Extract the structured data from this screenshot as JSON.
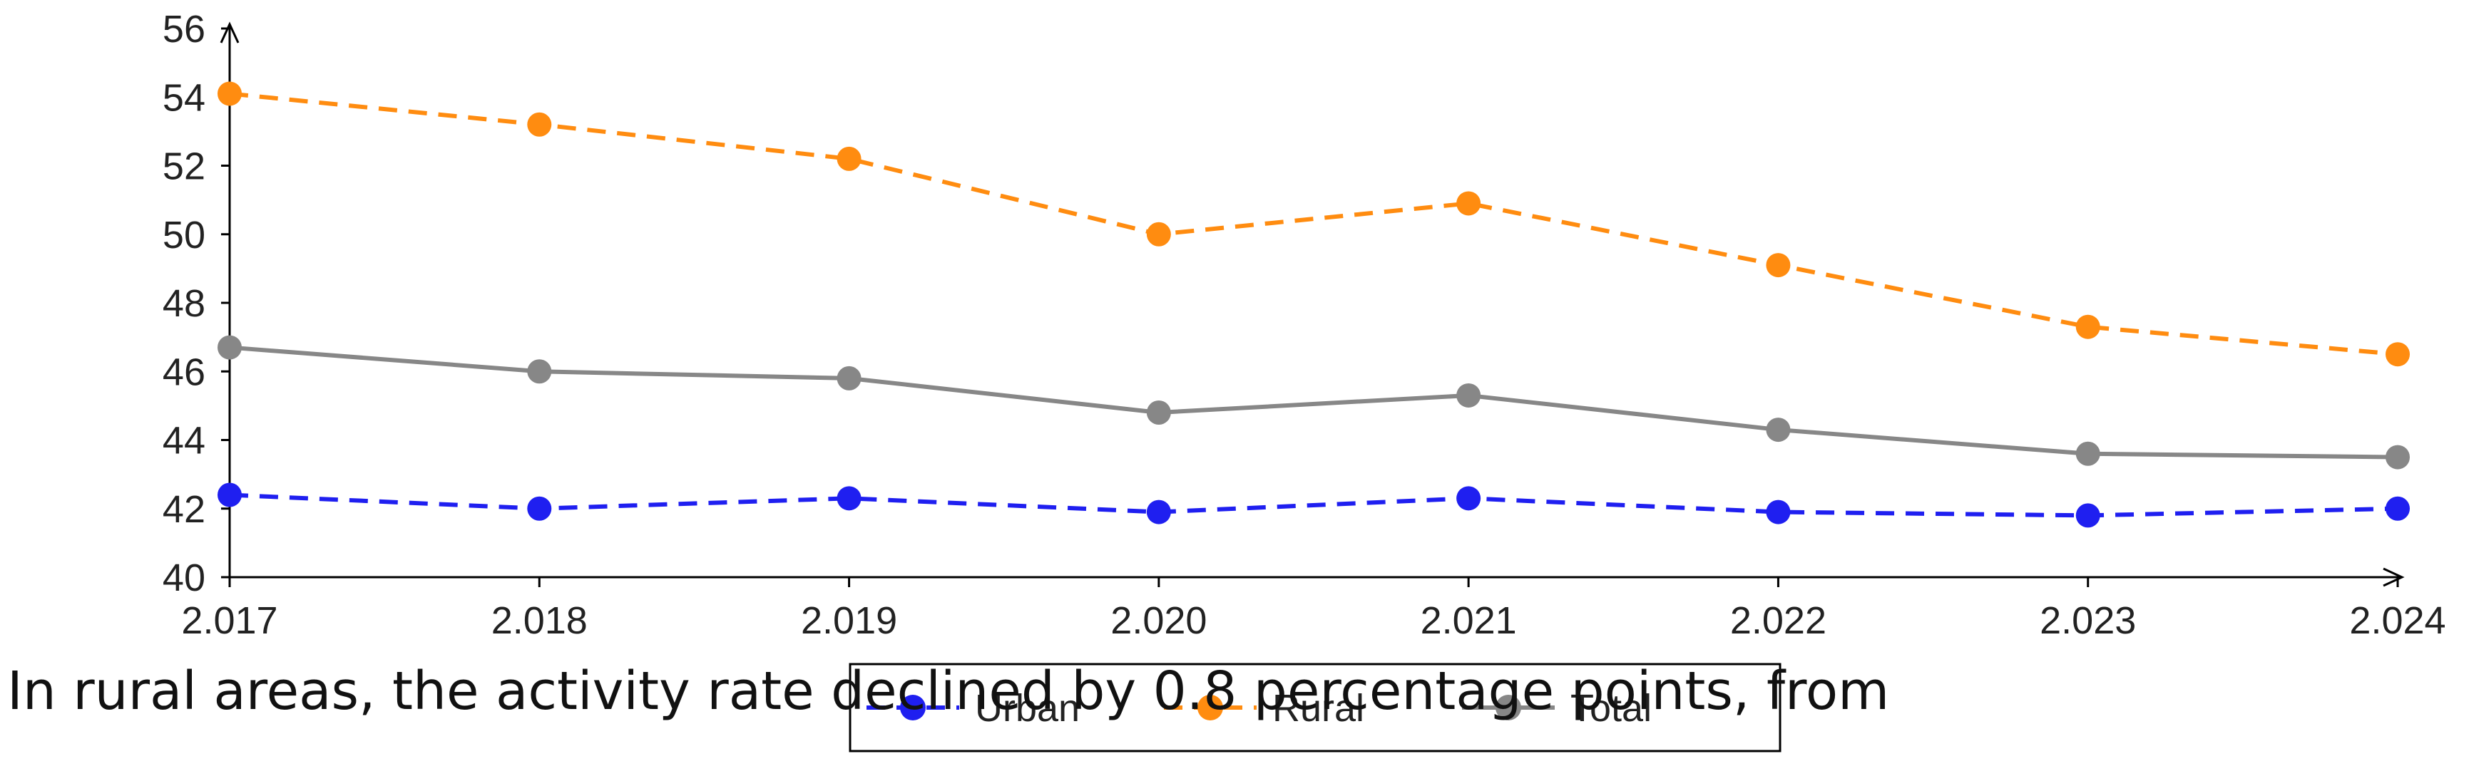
{
  "chart_data": {
    "type": "line",
    "title": "",
    "xlabel": "",
    "ylabel": "",
    "categories": [
      "2.017",
      "2.018",
      "2.019",
      "2.020",
      "2.021",
      "2.022",
      "2.023",
      "2.024"
    ],
    "ylim": [
      40,
      56
    ],
    "yticks": [
      "40",
      "42",
      "44",
      "46",
      "48",
      "50",
      "52",
      "54",
      "56"
    ],
    "grid": false,
    "legend_position": "bottom-center",
    "series": [
      {
        "name": "Urban",
        "color": "#1f1ff0",
        "dash": "dashed",
        "values": [
          42.4,
          42.0,
          42.3,
          41.9,
          42.3,
          41.9,
          41.8,
          42.0
        ]
      },
      {
        "name": "Rural",
        "color": "#ff8c10",
        "dash": "dashed",
        "values": [
          54.1,
          53.2,
          52.2,
          50.0,
          50.9,
          49.1,
          47.3,
          46.5
        ]
      },
      {
        "name": "Total",
        "color": "#878787",
        "dash": "solid",
        "values": [
          46.7,
          46.0,
          45.8,
          44.8,
          45.3,
          44.3,
          43.6,
          43.5
        ]
      }
    ]
  },
  "caption": {
    "text": "In rural areas, the activity rate declined by 0.8 percentage points, from"
  }
}
